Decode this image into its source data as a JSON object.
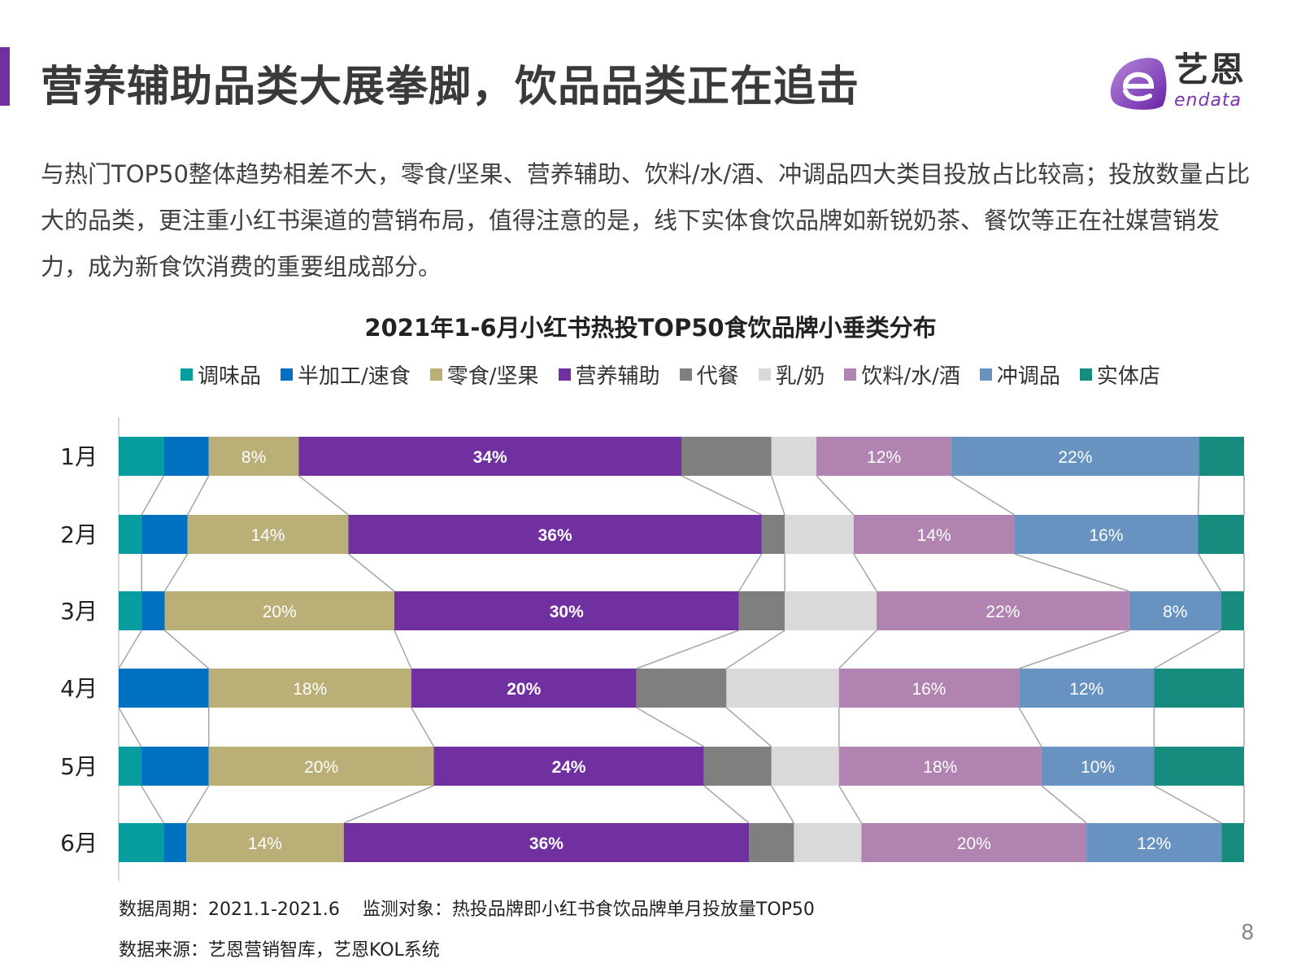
{
  "header": {
    "title": "营养辅助品类大展拳脚，饮品品类正在追击",
    "accent_color": "#7030A0",
    "logo": {
      "cn": "艺恩",
      "en": "endata"
    }
  },
  "paragraph": "与热门TOP50整体趋势相差不大，零食/坚果、营养辅助、饮料/水/酒、冲调品四大类目投放占比较高；投放数量占比大的品类，更注重小红书渠道的营销布局，值得注意的是，线下实体食饮品牌如新锐奶茶、餐饮等正在社媒营销发力，成为新食饮消费的重要组成部分。",
  "chart_data": {
    "type": "bar",
    "orientation": "horizontal-stacked-100",
    "title": "2021年1-6月小红书热投TOP50食饮品牌小垂类分布",
    "legend_position": "top",
    "grid": false,
    "categories": [
      "1月",
      "2月",
      "3月",
      "4月",
      "5月",
      "6月"
    ],
    "series": [
      {
        "name": "调味品",
        "color": "#079D9F",
        "values": [
          4,
          2,
          2,
          0,
          2,
          4
        ],
        "labels": [
          "",
          "",
          "",
          "",
          "",
          ""
        ]
      },
      {
        "name": "半加工/速食",
        "color": "#0070C0",
        "values": [
          4,
          4,
          2,
          8,
          6,
          2
        ],
        "labels": [
          "",
          "",
          "",
          "",
          "",
          ""
        ]
      },
      {
        "name": "零食/坚果",
        "color": "#BBAF78",
        "values": [
          8,
          14,
          20,
          18,
          20,
          14
        ],
        "labels": [
          "8%",
          "14%",
          "20%",
          "18%",
          "20%",
          "14%"
        ]
      },
      {
        "name": "营养辅助",
        "color": "#7030A0",
        "values": [
          34,
          36,
          30,
          20,
          24,
          36
        ],
        "labels": [
          "34%",
          "36%",
          "30%",
          "20%",
          "24%",
          "36%"
        ],
        "bold": true
      },
      {
        "name": "代餐",
        "color": "#7F7F7F",
        "values": [
          8,
          2,
          4,
          8,
          6,
          4
        ],
        "labels": [
          "",
          "",
          "",
          "",
          "",
          ""
        ]
      },
      {
        "name": "乳/奶",
        "color": "#D9D9D9",
        "values": [
          4,
          6,
          8,
          10,
          6,
          6
        ],
        "labels": [
          "",
          "",
          "",
          "",
          "",
          ""
        ]
      },
      {
        "name": "饮料/水/酒",
        "color": "#B083B0",
        "values": [
          12,
          14,
          22,
          16,
          18,
          20
        ],
        "labels": [
          "12%",
          "14%",
          "22%",
          "16%",
          "18%",
          "20%"
        ]
      },
      {
        "name": "冲调品",
        "color": "#6893C0",
        "values": [
          22,
          16,
          8,
          12,
          10,
          12
        ],
        "labels": [
          "22%",
          "16%",
          "8%",
          "12%",
          "10%",
          "12%"
        ]
      },
      {
        "name": "实体店",
        "color": "#168B7E",
        "values": [
          4,
          4,
          2,
          8,
          8,
          2
        ],
        "labels": [
          "",
          "",
          "",
          "",
          "",
          ""
        ]
      }
    ],
    "unit": "%"
  },
  "footnotes": {
    "period": "数据周期：2021.1-2021.6",
    "object": "监测对象：热投品牌即小红书食饮品牌单月投放量TOP50",
    "source": "数据来源：艺恩营销智库，艺恩KOL系统"
  },
  "page_number": "8"
}
